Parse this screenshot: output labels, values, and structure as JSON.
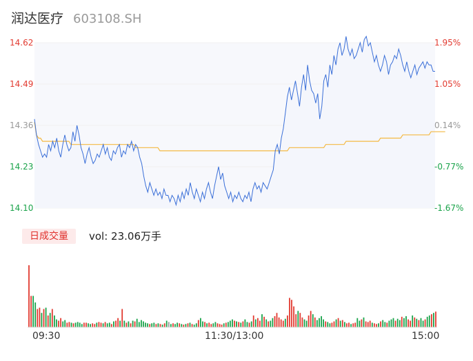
{
  "header": {
    "name": "润达医疗",
    "code": "603108.SH"
  },
  "colors": {
    "price_line": "#3a6fd8",
    "avg_line": "#f4b942",
    "up": "#e23a30",
    "down": "#1aa34a",
    "flat": "#999999",
    "area_fill": "#f4f6fc"
  },
  "price_axis": [
    "14.62",
    "14.49",
    "14.36",
    "14.23",
    "14.10"
  ],
  "pct_axis": [
    "1.95%",
    "1.05%",
    "0.14%",
    "-0.77%",
    "-1.67%"
  ],
  "volume": {
    "badge": "日成交量",
    "text": "vol: 23.06万手"
  },
  "time_axis": [
    "09:30",
    "11:30/13:00",
    "15:00"
  ],
  "chart_data": [
    {
      "type": "line",
      "title": "",
      "ylim": [
        14.1,
        14.62
      ],
      "prev_close": 14.34,
      "series": [
        {
          "role": "price",
          "values": [
            14.38,
            14.33,
            14.3,
            14.28,
            14.26,
            14.27,
            14.26,
            14.3,
            14.28,
            14.31,
            14.29,
            14.32,
            14.28,
            14.26,
            14.3,
            14.33,
            14.3,
            14.28,
            14.29,
            14.34,
            14.31,
            14.36,
            14.33,
            14.29,
            14.27,
            14.24,
            14.27,
            14.29,
            14.26,
            14.24,
            14.25,
            14.27,
            14.26,
            14.28,
            14.3,
            14.27,
            14.29,
            14.26,
            14.25,
            14.28,
            14.27,
            14.29,
            14.3,
            14.26,
            14.28,
            14.27,
            14.3,
            14.29,
            14.31,
            14.28,
            14.3,
            14.29,
            14.26,
            14.24,
            14.2,
            14.17,
            14.15,
            14.18,
            14.16,
            14.14,
            14.16,
            14.14,
            14.15,
            14.13,
            14.16,
            14.14,
            14.14,
            14.12,
            14.14,
            14.13,
            14.11,
            14.14,
            14.12,
            14.15,
            14.13,
            14.16,
            14.14,
            14.18,
            14.15,
            14.13,
            14.16,
            14.14,
            14.12,
            14.15,
            14.13,
            14.16,
            14.18,
            14.15,
            14.13,
            14.17,
            14.2,
            14.23,
            14.19,
            14.21,
            14.17,
            14.15,
            14.13,
            14.15,
            14.12,
            14.14,
            14.13,
            14.15,
            14.13,
            14.12,
            14.14,
            14.13,
            14.15,
            14.12,
            14.16,
            14.18,
            14.16,
            14.17,
            14.15,
            14.18,
            14.17,
            14.16,
            14.18,
            14.2,
            14.22,
            14.28,
            14.3,
            14.27,
            14.32,
            14.35,
            14.4,
            14.45,
            14.48,
            14.44,
            14.47,
            14.5,
            14.46,
            14.42,
            14.48,
            14.52,
            14.47,
            14.55,
            14.5,
            14.47,
            14.46,
            14.43,
            14.46,
            14.38,
            14.42,
            14.5,
            14.52,
            14.48,
            14.55,
            14.52,
            14.58,
            14.55,
            14.6,
            14.62,
            14.58,
            14.6,
            14.64,
            14.6,
            14.58,
            14.6,
            14.57,
            14.58,
            14.6,
            14.62,
            14.59,
            14.63,
            14.64,
            14.61,
            14.62,
            14.59,
            14.56,
            14.58,
            14.55,
            14.53,
            14.55,
            14.58,
            14.56,
            14.52,
            14.55,
            14.56,
            14.58,
            14.57,
            14.6,
            14.58,
            14.55,
            14.53,
            14.56,
            14.53,
            14.51,
            14.53,
            14.55,
            14.52,
            14.54,
            14.55,
            14.56,
            14.54,
            14.56,
            14.55,
            14.55,
            14.53,
            14.53
          ]
        },
        {
          "role": "average",
          "values": [
            14.37,
            14.33,
            14.32,
            14.32,
            14.31,
            14.31,
            14.31,
            14.31,
            14.31,
            14.31,
            14.31,
            14.31,
            14.31,
            14.31,
            14.31,
            14.31,
            14.31,
            14.31,
            14.3,
            14.3,
            14.3,
            14.3,
            14.3,
            14.3,
            14.3,
            14.3,
            14.3,
            14.3,
            14.3,
            14.3,
            14.3,
            14.3,
            14.3,
            14.3,
            14.3,
            14.3,
            14.3,
            14.3,
            14.3,
            14.3,
            14.3,
            14.3,
            14.3,
            14.3,
            14.3,
            14.3,
            14.3,
            14.3,
            14.3,
            14.3,
            14.29,
            14.29,
            14.29,
            14.29,
            14.29,
            14.29,
            14.29,
            14.29,
            14.29,
            14.29,
            14.29,
            14.29,
            14.28,
            14.28,
            14.28,
            14.28,
            14.28,
            14.28,
            14.28,
            14.28,
            14.28,
            14.28,
            14.28,
            14.28,
            14.28,
            14.28,
            14.28,
            14.28,
            14.28,
            14.28,
            14.28,
            14.28,
            14.28,
            14.28,
            14.28,
            14.28,
            14.28,
            14.28,
            14.28,
            14.28,
            14.28,
            14.28,
            14.28,
            14.28,
            14.28,
            14.28,
            14.28,
            14.28,
            14.28,
            14.28,
            14.28,
            14.28,
            14.28,
            14.28,
            14.28,
            14.28,
            14.28,
            14.28,
            14.28,
            14.28,
            14.28,
            14.28,
            14.28,
            14.28,
            14.28,
            14.28,
            14.28,
            14.28,
            14.28,
            14.28,
            14.28,
            14.28,
            14.28,
            14.28,
            14.28,
            14.28,
            14.29,
            14.29,
            14.29,
            14.29,
            14.29,
            14.29,
            14.29,
            14.29,
            14.29,
            14.29,
            14.29,
            14.29,
            14.29,
            14.29,
            14.29,
            14.29,
            14.29,
            14.29,
            14.3,
            14.3,
            14.3,
            14.3,
            14.3,
            14.3,
            14.3,
            14.3,
            14.3,
            14.3,
            14.31,
            14.31,
            14.31,
            14.31,
            14.31,
            14.31,
            14.31,
            14.31,
            14.31,
            14.31,
            14.31,
            14.31,
            14.31,
            14.31,
            14.31,
            14.31,
            14.31,
            14.32,
            14.32,
            14.32,
            14.32,
            14.32,
            14.32,
            14.32,
            14.32,
            14.32,
            14.32,
            14.32,
            14.33,
            14.33,
            14.33,
            14.33,
            14.33,
            14.33,
            14.33,
            14.33,
            14.33,
            14.33,
            14.33,
            14.33,
            14.33,
            14.33,
            14.34,
            14.34,
            14.34,
            14.34,
            14.34,
            14.34,
            14.34,
            14.34
          ]
        }
      ]
    },
    {
      "type": "bar",
      "title": "",
      "volumes": [
        95,
        48,
        48,
        38,
        28,
        30,
        22,
        28,
        30,
        18,
        22,
        28,
        18,
        12,
        10,
        14,
        9,
        11,
        7,
        8,
        7,
        6,
        7,
        8,
        7,
        5,
        7,
        7,
        6,
        5,
        6,
        5,
        7,
        8,
        7,
        6,
        8,
        6,
        7,
        5,
        9,
        10,
        14,
        10,
        28,
        10,
        7,
        9,
        6,
        10,
        9,
        13,
        8,
        11,
        9,
        7,
        6,
        5,
        6,
        7,
        5,
        6,
        5,
        4,
        6,
        10,
        8,
        5,
        6,
        5,
        7,
        6,
        5,
        4,
        5,
        6,
        7,
        5,
        4,
        6,
        11,
        14,
        9,
        8,
        6,
        7,
        5,
        6,
        8,
        6,
        5,
        4,
        6,
        7,
        8,
        10,
        12,
        10,
        9,
        8,
        7,
        9,
        12,
        8,
        7,
        9,
        18,
        12,
        14,
        10,
        20,
        16,
        12,
        9,
        10,
        14,
        17,
        22,
        15,
        12,
        10,
        13,
        18,
        45,
        42,
        32,
        20,
        25,
        22,
        15,
        12,
        10,
        18,
        25,
        20,
        15,
        11,
        14,
        17,
        12,
        9,
        8,
        6,
        7,
        9,
        12,
        14,
        10,
        11,
        8,
        6,
        7,
        5,
        6,
        7,
        14,
        10,
        12,
        15,
        9,
        8,
        10,
        7,
        6,
        5,
        6,
        9,
        11,
        8,
        7,
        10,
        12,
        14,
        10,
        13,
        11,
        16,
        14,
        17,
        12,
        10,
        18,
        15,
        13,
        11,
        14,
        10,
        12,
        16,
        18,
        20,
        22,
        24
      ],
      "directions": [
        1,
        1,
        -1,
        -1,
        1,
        1,
        -1,
        1,
        -1,
        1,
        -1,
        1,
        -1,
        -1,
        1,
        1,
        -1,
        -1,
        1,
        1,
        -1,
        1,
        -1,
        -1,
        -1,
        -1,
        1,
        1,
        -1,
        -1,
        1,
        1,
        -1,
        1,
        1,
        -1,
        1,
        -1,
        -1,
        1,
        -1,
        1,
        1,
        -1,
        1,
        -1,
        1,
        -1,
        1,
        -1,
        1,
        -1,
        -1,
        -1,
        -1,
        -1,
        -1,
        1,
        -1,
        -1,
        1,
        -1,
        1,
        -1,
        1,
        -1,
        0,
        -1,
        1,
        -1,
        -1,
        1,
        -1,
        1,
        -1,
        1,
        -1,
        1,
        -1,
        -1,
        1,
        -1,
        -1,
        1,
        -1,
        1,
        1,
        -1,
        -1,
        1,
        1,
        1,
        -1,
        1,
        -1,
        -1,
        -1,
        1,
        -1,
        1,
        -1,
        1,
        -1,
        -1,
        1,
        -1,
        1,
        -1,
        1,
        1,
        -1,
        1,
        -1,
        1,
        -1,
        -1,
        1,
        1,
        1,
        1,
        1,
        -1,
        1,
        1,
        1,
        1,
        1,
        -1,
        1,
        1,
        -1,
        -1,
        1,
        1,
        -1,
        1,
        -1,
        -1,
        -1,
        -1,
        1,
        -1,
        -1,
        1,
        1,
        -1,
        1,
        -1,
        1,
        -1,
        1,
        1,
        -1,
        1,
        1,
        -1,
        -1,
        1,
        -1,
        1,
        1,
        1,
        -1,
        1,
        1,
        -1,
        1,
        -1,
        -1,
        1,
        -1,
        -1,
        -1,
        1,
        -1,
        -1,
        1,
        -1,
        -1,
        1,
        1,
        -1,
        1,
        -1,
        1,
        -1,
        -1,
        1,
        -1,
        -1,
        1,
        -1,
        1,
        1,
        -1,
        1,
        -1,
        1,
        -1,
        0
      ]
    }
  ]
}
